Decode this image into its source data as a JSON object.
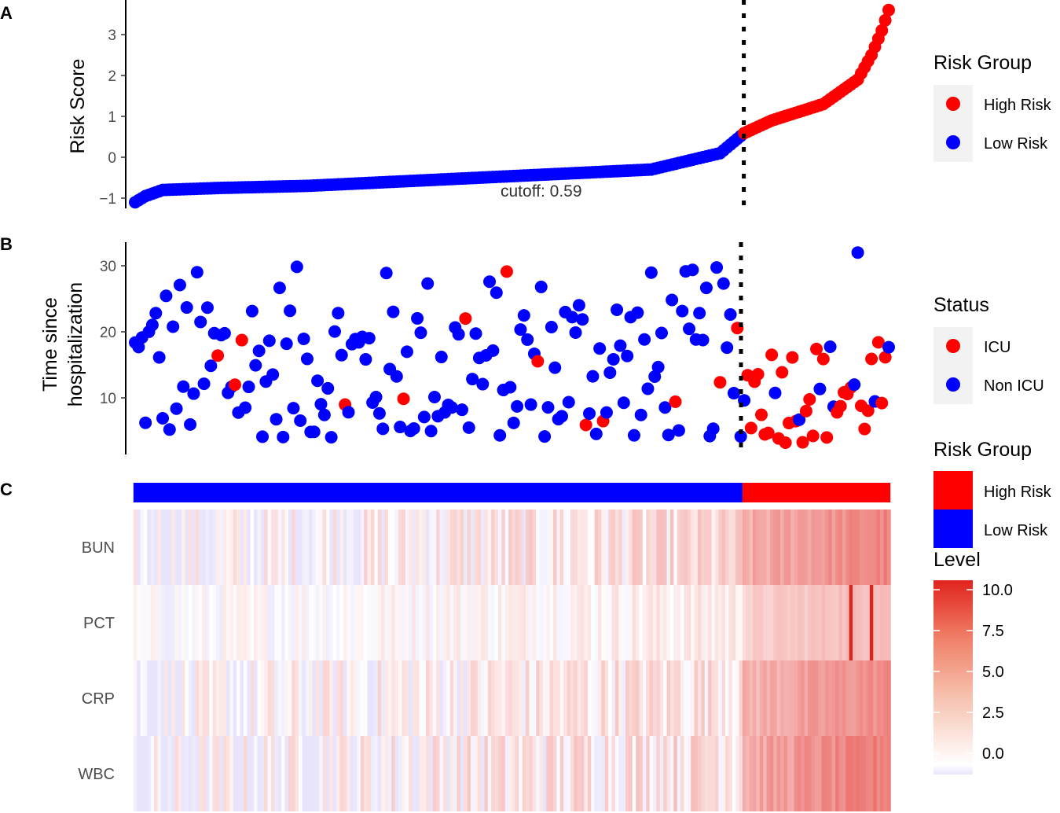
{
  "colors": {
    "high_risk": "#ff0000",
    "low_risk": "#0000ff",
    "heat_low": "#e8e4fb",
    "heat_mid": "#ffffff",
    "heat_high": "#e0231c"
  },
  "panels": {
    "a": {
      "letter": "A"
    },
    "b": {
      "letter": "B"
    },
    "c": {
      "letter": "C"
    }
  },
  "legends": {
    "risk_group": {
      "title": "Risk Group",
      "items": [
        "High Risk",
        "Low Risk"
      ]
    },
    "status": {
      "title": "Status",
      "items": [
        "ICU",
        "Non ICU"
      ]
    },
    "risk_group_bar": {
      "title": "Risk Group",
      "items": [
        "High Risk",
        "Low Risk"
      ]
    },
    "level": {
      "title": "Level",
      "ticks": [
        "10.0",
        "7.5",
        "5.0",
        "2.5",
        "0.0"
      ]
    }
  },
  "chart_data": [
    {
      "type": "scatter",
      "panel": "A",
      "ylabel": "Risk Score",
      "xlabel": "",
      "ylim": [
        -1.2,
        3.8
      ],
      "yticks": [
        -1,
        0,
        1,
        2,
        3
      ],
      "n_patients": 220,
      "cutoff": 0.59,
      "cutoff_index": 177,
      "annotation": "cutoff: 0.59",
      "risk_score_sorted": {
        "min": -1.1,
        "max": 3.6,
        "keypoints_x": [
          0,
          3,
          8,
          25,
          50,
          100,
          150,
          170,
          177,
          185,
          200,
          210,
          214,
          217,
          219
        ],
        "keypoints_y": [
          -1.1,
          -0.95,
          -0.8,
          -0.75,
          -0.7,
          -0.5,
          -0.3,
          0.1,
          0.59,
          0.9,
          1.3,
          1.9,
          2.5,
          3.1,
          3.6
        ]
      },
      "series": [
        {
          "name": "High Risk"
        },
        {
          "name": "Low Risk"
        }
      ]
    },
    {
      "type": "scatter",
      "panel": "B",
      "ylabel": "Time since hospitalization",
      "xlabel": "",
      "ylim": [
        2,
        34
      ],
      "yticks": [
        10,
        20,
        30
      ],
      "time_range": [
        3,
        32
      ],
      "series": [
        {
          "name": "ICU"
        },
        {
          "name": "Non ICU"
        }
      ]
    },
    {
      "type": "heatmap",
      "panel": "C",
      "rows": [
        "BUN",
        "PCT",
        "CRP",
        "WBC"
      ],
      "level_range": [
        -0.5,
        10.0
      ],
      "pct_spikes": [
        {
          "index": 208,
          "level": 10.0
        },
        {
          "index": 214,
          "level": 10.0
        }
      ],
      "group_bar": {
        "Low Risk": 177,
        "High Risk": 43
      }
    }
  ]
}
